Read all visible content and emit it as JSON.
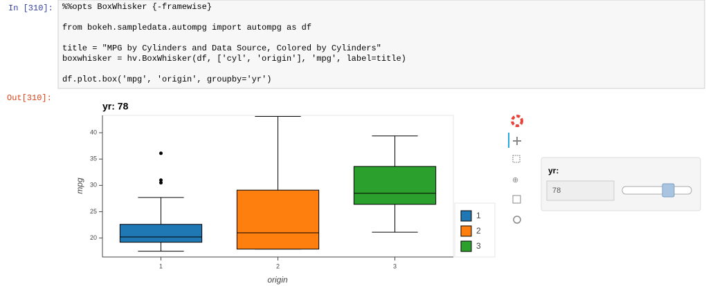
{
  "cell": {
    "prompt": "In [310]:",
    "paragraphs": [
      [
        "%%opts BoxWhisker {-framewise}"
      ],
      [
        "from bokeh.sampledata.autompg import autompg as df"
      ],
      [
        "title = \"MPG by Cylinders and Data Source, Colored by Cylinders\"",
        "boxwhisker = hv.BoxWhisker(df, ['cyl', 'origin'], 'mpg', label=title)"
      ],
      [
        "df.plot.box('mpg', 'origin', groupby='yr')"
      ]
    ]
  },
  "output": {
    "prompt": "Out[310]:"
  },
  "widget": {
    "label": "yr:",
    "value": "78"
  },
  "chart_data": {
    "type": "box",
    "title": "yr: 78",
    "x_label": "origin",
    "y_label": "mpg",
    "categories": [
      "1",
      "2",
      "3"
    ],
    "series": [
      {
        "name": "1",
        "color": "#1f77b4",
        "min": 17.5,
        "q1": 19.2,
        "median": 20.2,
        "q3": 22.6,
        "max": 27.7,
        "outliers": [
          30.5,
          31,
          36.1
        ]
      },
      {
        "name": "2",
        "color": "#ff7f0e",
        "min": 17.9,
        "q1": 17.9,
        "median": 21,
        "q3": 29.1,
        "max": 43.1,
        "outliers": []
      },
      {
        "name": "3",
        "color": "#2ca02c",
        "min": 21.1,
        "q1": 26.4,
        "median": 28.5,
        "q3": 33.6,
        "max": 39.4,
        "outliers": []
      }
    ],
    "ylim": [
      16.4,
      43.3
    ],
    "yticks": [
      20,
      25,
      30,
      35,
      40
    ]
  }
}
